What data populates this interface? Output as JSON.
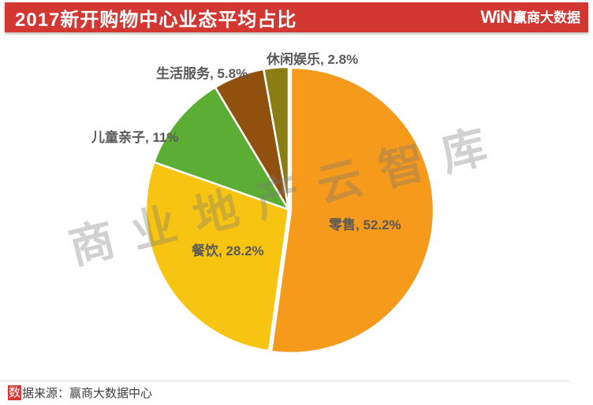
{
  "header": {
    "title": "2017新开购物中心业态平均占比",
    "bar_color": "#D23731",
    "logo": {
      "win_mark": "WiN",
      "brand": "赢商大数据"
    }
  },
  "watermark": {
    "text": "商业地产云智库"
  },
  "chart_data": {
    "type": "pie",
    "title": "2017新开购物中心业态平均占比",
    "start_angle_deg": 0,
    "direction": "clockwise",
    "label_color": "#595959",
    "slices": [
      {
        "name": "零售",
        "pct": 52.2,
        "label": "零售, 52.2%",
        "color": "#F59A1B"
      },
      {
        "name": "餐饮",
        "pct": 28.2,
        "label": "餐饮, 28.2%",
        "color": "#F7C411"
      },
      {
        "name": "儿童亲子",
        "pct": 11,
        "label": "儿童亲子, 11%",
        "color": "#5CAD33"
      },
      {
        "name": "生活服务",
        "pct": 5.8,
        "label": "生活服务, 5.8%",
        "color": "#91510E"
      },
      {
        "name": "休闲娱乐",
        "pct": 2.8,
        "label": "休闲娱乐, 2.8%",
        "color": "#8A7D14"
      }
    ]
  },
  "footer": {
    "source_highlight_char": "数",
    "source_rest": "据来源：赢商大数据中心"
  }
}
